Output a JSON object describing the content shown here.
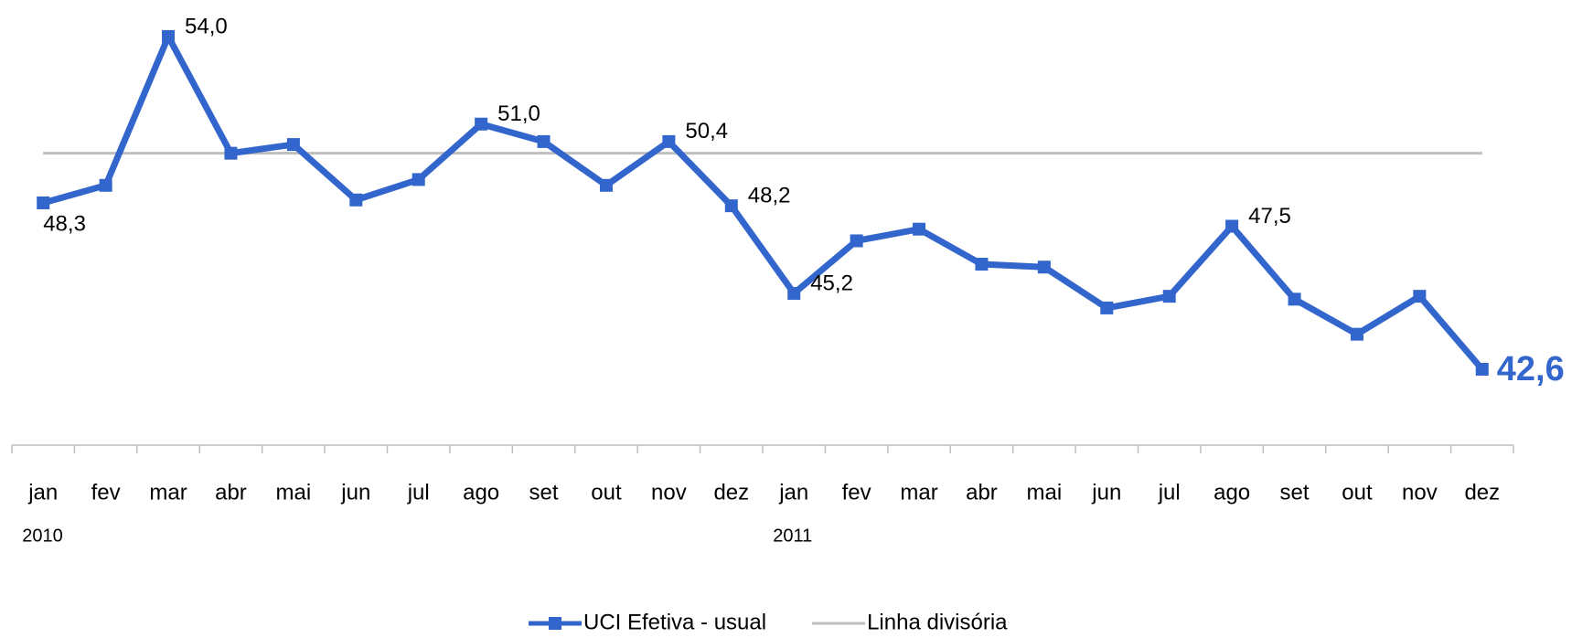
{
  "chart_data": {
    "type": "line",
    "categories": [
      "jan",
      "fev",
      "mar",
      "abr",
      "mai",
      "jun",
      "jul",
      "ago",
      "set",
      "out",
      "nov",
      "dez",
      "jan",
      "fev",
      "mar",
      "abr",
      "mai",
      "jun",
      "jul",
      "ago",
      "set",
      "out",
      "nov",
      "dez"
    ],
    "category_groups": [
      "2010",
      null,
      null,
      null,
      null,
      null,
      null,
      null,
      null,
      null,
      null,
      null,
      "2011",
      null,
      null,
      null,
      null,
      null,
      null,
      null,
      null,
      null,
      null,
      null
    ],
    "series": [
      {
        "name": "UCI Efetiva - usual",
        "color": "#3366cc",
        "values": [
          48.3,
          48.9,
          54.0,
          50.0,
          50.3,
          48.4,
          49.1,
          51.0,
          50.4,
          48.9,
          50.4,
          48.2,
          45.2,
          47.0,
          47.4,
          46.2,
          46.1,
          44.7,
          45.1,
          47.5,
          45.0,
          43.8,
          45.1,
          42.6
        ],
        "value_labels": [
          "48,3",
          null,
          "54,0",
          null,
          null,
          null,
          null,
          "51,0",
          null,
          null,
          "50,4",
          "48,2",
          "45,2",
          null,
          null,
          null,
          null,
          null,
          null,
          "47,5",
          null,
          null,
          null,
          "42,6"
        ]
      },
      {
        "name": "Linha divisória",
        "color": "#bfbfbf",
        "values": [
          50,
          50,
          50,
          50,
          50,
          50,
          50,
          50,
          50,
          50,
          50,
          50,
          50,
          50,
          50,
          50,
          50,
          50,
          50,
          50,
          50,
          50,
          50,
          50
        ]
      }
    ],
    "ylim": [
      40,
      55
    ]
  }
}
